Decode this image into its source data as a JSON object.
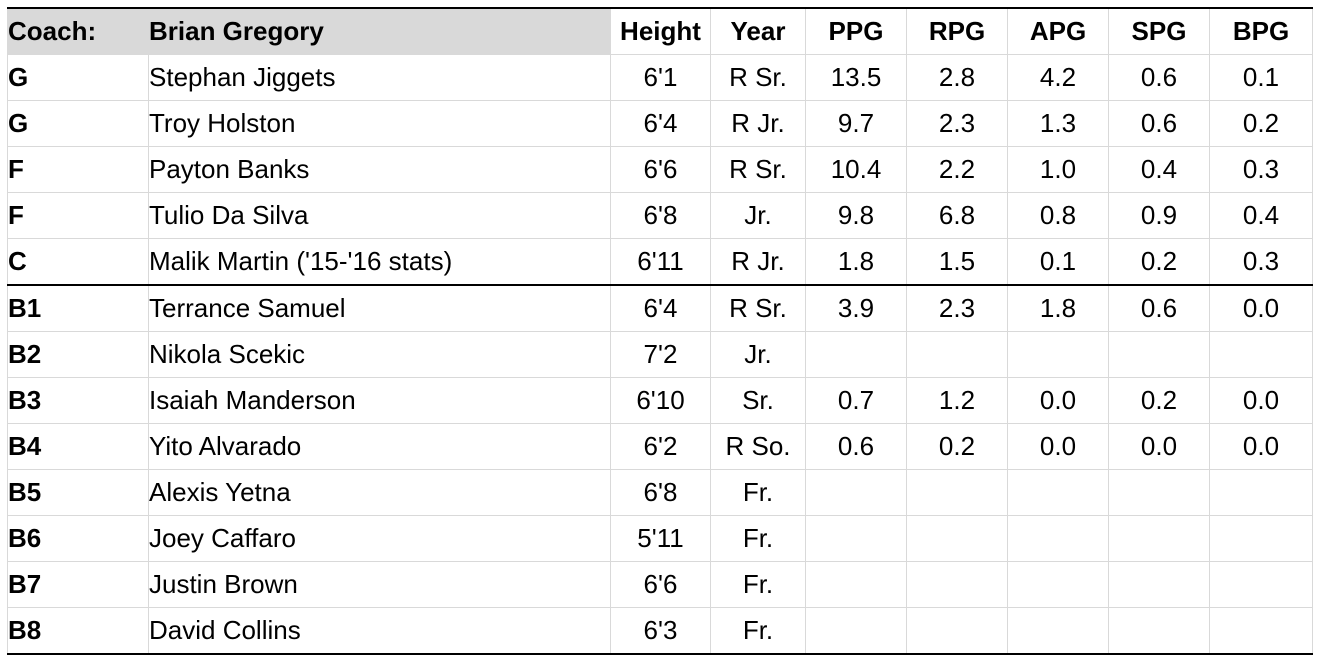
{
  "header": {
    "coach_label": "Coach:",
    "coach_name": "Brian Gregory",
    "columns": [
      "Height",
      "Year",
      "PPG",
      "RPG",
      "APG",
      "SPG",
      "BPG"
    ]
  },
  "rows": [
    {
      "pos": "G",
      "name": "Stephan Jiggets",
      "height": "6'1",
      "year": "R Sr.",
      "ppg": "13.5",
      "rpg": "2.8",
      "apg": "4.2",
      "spg": "0.6",
      "bpg": "0.1"
    },
    {
      "pos": "G",
      "name": "Troy Holston",
      "height": "6'4",
      "year": "R Jr.",
      "ppg": "9.7",
      "rpg": "2.3",
      "apg": "1.3",
      "spg": "0.6",
      "bpg": "0.2"
    },
    {
      "pos": "F",
      "name": "Payton Banks",
      "height": "6'6",
      "year": "R Sr.",
      "ppg": "10.4",
      "rpg": "2.2",
      "apg": "1.0",
      "spg": "0.4",
      "bpg": "0.3"
    },
    {
      "pos": "F",
      "name": "Tulio Da Silva",
      "height": "6'8",
      "year": "Jr.",
      "ppg": "9.8",
      "rpg": "6.8",
      "apg": "0.8",
      "spg": "0.9",
      "bpg": "0.4"
    },
    {
      "pos": "C",
      "name": "Malik Martin ('15-'16 stats)",
      "height": "6'11",
      "year": "R Jr.",
      "ppg": "1.8",
      "rpg": "1.5",
      "apg": "0.1",
      "spg": "0.2",
      "bpg": "0.3"
    },
    {
      "pos": "B1",
      "name": "Terrance Samuel",
      "height": "6'4",
      "year": "R Sr.",
      "ppg": "3.9",
      "rpg": "2.3",
      "apg": "1.8",
      "spg": "0.6",
      "bpg": "0.0"
    },
    {
      "pos": "B2",
      "name": "Nikola Scekic",
      "height": "7'2",
      "year": "Jr.",
      "ppg": "",
      "rpg": "",
      "apg": "",
      "spg": "",
      "bpg": ""
    },
    {
      "pos": "B3",
      "name": "Isaiah Manderson",
      "height": "6'10",
      "year": "Sr.",
      "ppg": "0.7",
      "rpg": "1.2",
      "apg": "0.0",
      "spg": "0.2",
      "bpg": "0.0"
    },
    {
      "pos": "B4",
      "name": "Yito Alvarado",
      "height": "6'2",
      "year": "R So.",
      "ppg": "0.6",
      "rpg": "0.2",
      "apg": "0.0",
      "spg": "0.0",
      "bpg": "0.0"
    },
    {
      "pos": "B5",
      "name": "Alexis Yetna",
      "height": "6'8",
      "year": "Fr.",
      "ppg": "",
      "rpg": "",
      "apg": "",
      "spg": "",
      "bpg": ""
    },
    {
      "pos": "B6",
      "name": "Joey Caffaro",
      "height": "5'11",
      "year": "Fr.",
      "ppg": "",
      "rpg": "",
      "apg": "",
      "spg": "",
      "bpg": ""
    },
    {
      "pos": "B7",
      "name": "Justin Brown",
      "height": "6'6",
      "year": "Fr.",
      "ppg": "",
      "rpg": "",
      "apg": "",
      "spg": "",
      "bpg": ""
    },
    {
      "pos": "B8",
      "name": "David Collins",
      "height": "6'3",
      "year": "Fr.",
      "ppg": "",
      "rpg": "",
      "apg": "",
      "spg": "",
      "bpg": ""
    }
  ]
}
